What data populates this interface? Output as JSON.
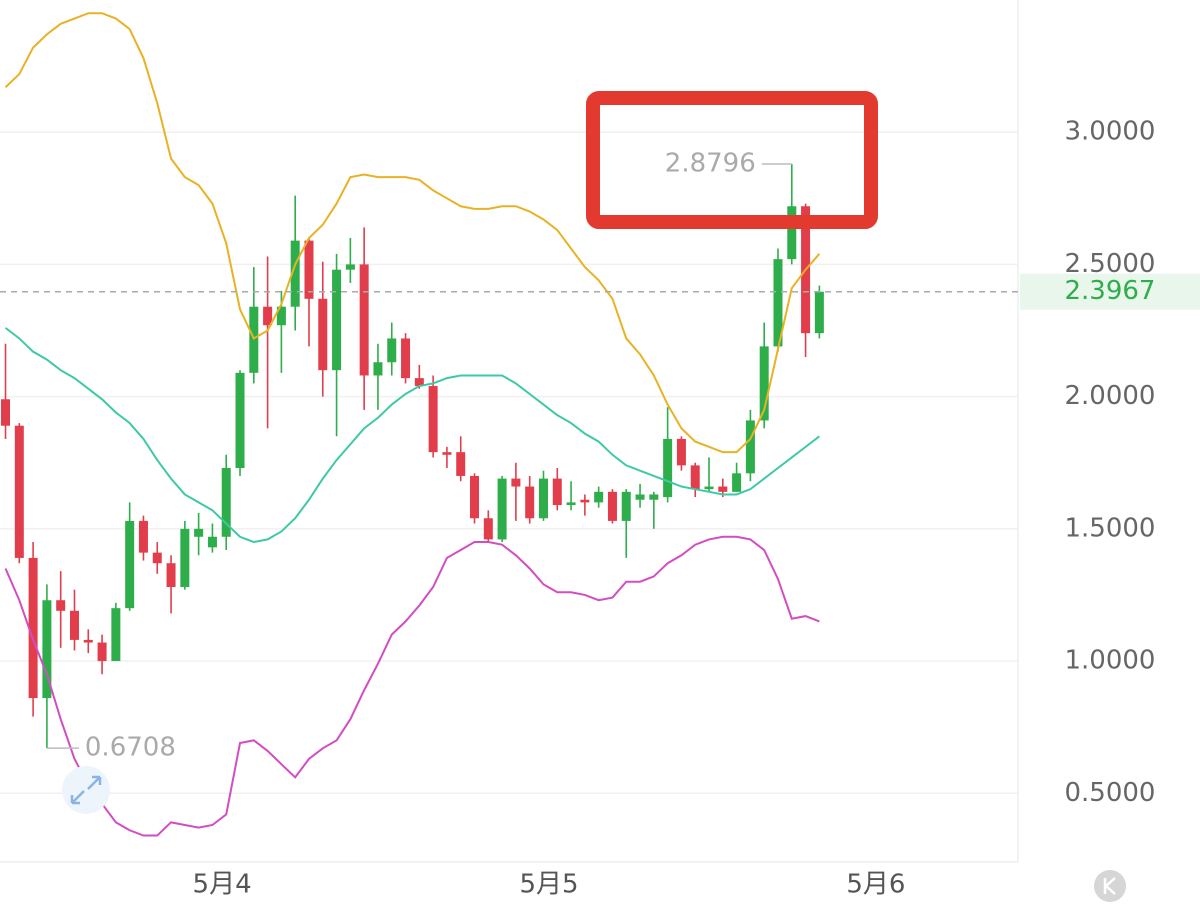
{
  "chart_data": {
    "type": "candlestick",
    "x": [
      0,
      1,
      2,
      3,
      4,
      5,
      6,
      7,
      8,
      9,
      10,
      11,
      12,
      13,
      14,
      15,
      16,
      17,
      18,
      19,
      20,
      21,
      22,
      23,
      24,
      25,
      26,
      27,
      28,
      29,
      30,
      31,
      32,
      33,
      34,
      35,
      36,
      37,
      38,
      39,
      40,
      41,
      42,
      43,
      44,
      45,
      46,
      47,
      48,
      49,
      50,
      51,
      52,
      53,
      54,
      55,
      56,
      57,
      58,
      59
    ],
    "open": [
      1.99,
      1.89,
      1.39,
      0.86,
      1.23,
      1.19,
      1.08,
      1.07,
      1.0,
      1.2,
      1.53,
      1.41,
      1.37,
      1.28,
      1.47,
      1.43,
      1.47,
      1.73,
      2.09,
      2.34,
      2.27,
      2.34,
      2.59,
      2.37,
      2.1,
      2.48,
      2.5,
      2.08,
      2.13,
      2.22,
      2.07,
      2.04,
      1.79,
      1.79,
      1.7,
      1.54,
      1.46,
      1.69,
      1.66,
      1.54,
      1.69,
      1.59,
      1.61,
      1.6,
      1.64,
      1.53,
      1.61,
      1.61,
      1.62,
      1.84,
      1.74,
      1.65,
      1.66,
      1.64,
      1.71,
      1.91,
      2.19,
      2.52,
      2.72,
      2.24
    ],
    "high": [
      2.2,
      1.9,
      1.45,
      1.29,
      1.34,
      1.27,
      1.12,
      1.1,
      1.22,
      1.6,
      1.55,
      1.45,
      1.4,
      1.53,
      1.56,
      1.52,
      1.78,
      2.1,
      2.49,
      2.53,
      2.4,
      2.76,
      2.6,
      2.51,
      2.54,
      2.6,
      2.64,
      2.2,
      2.28,
      2.24,
      2.12,
      2.08,
      1.81,
      1.85,
      1.71,
      1.57,
      1.7,
      1.75,
      1.7,
      1.72,
      1.73,
      1.68,
      1.63,
      1.66,
      1.65,
      1.65,
      1.67,
      1.64,
      1.96,
      1.85,
      1.75,
      1.77,
      1.69,
      1.75,
      1.95,
      2.28,
      2.56,
      2.8796,
      2.73,
      2.42
    ],
    "low": [
      1.84,
      1.37,
      0.79,
      0.6708,
      1.05,
      1.04,
      1.03,
      0.95,
      1.0,
      1.19,
      1.38,
      1.33,
      1.18,
      1.27,
      1.4,
      1.41,
      1.42,
      1.7,
      2.05,
      1.88,
      2.09,
      2.25,
      2.19,
      2.0,
      1.85,
      2.43,
      1.95,
      1.95,
      2.08,
      2.05,
      2.03,
      1.77,
      1.73,
      1.68,
      1.52,
      1.45,
      1.45,
      1.53,
      1.52,
      1.53,
      1.57,
      1.57,
      1.55,
      1.58,
      1.52,
      1.39,
      1.58,
      1.5,
      1.6,
      1.72,
      1.62,
      1.64,
      1.62,
      1.64,
      1.68,
      1.88,
      2.17,
      2.5,
      2.15,
      2.22
    ],
    "close": [
      1.89,
      1.39,
      0.86,
      1.23,
      1.19,
      1.08,
      1.07,
      1.0,
      1.2,
      1.53,
      1.41,
      1.37,
      1.28,
      1.5,
      1.5,
      1.47,
      1.73,
      2.09,
      2.34,
      2.27,
      2.34,
      2.59,
      2.37,
      2.1,
      2.48,
      2.5,
      2.08,
      2.13,
      2.22,
      2.07,
      2.04,
      1.79,
      1.78,
      1.7,
      1.54,
      1.46,
      1.69,
      1.66,
      1.54,
      1.69,
      1.59,
      1.6,
      1.6,
      1.64,
      1.53,
      1.64,
      1.63,
      1.63,
      1.84,
      1.74,
      1.65,
      1.66,
      1.64,
      1.71,
      1.91,
      2.19,
      2.52,
      2.72,
      2.24,
      2.3967
    ],
    "up_color": "#2ead4b",
    "down_color": "#e23d4b",
    "bands": [
      {
        "color": "#e8b224",
        "values": [
          3.17,
          3.22,
          3.32,
          3.37,
          3.41,
          3.43,
          3.45,
          3.45,
          3.43,
          3.39,
          3.28,
          3.11,
          2.9,
          2.83,
          2.8,
          2.73,
          2.58,
          2.33,
          2.22,
          2.25,
          2.35,
          2.5,
          2.6,
          2.65,
          2.73,
          2.83,
          2.84,
          2.83,
          2.83,
          2.83,
          2.82,
          2.78,
          2.75,
          2.72,
          2.71,
          2.71,
          2.72,
          2.72,
          2.7,
          2.67,
          2.63,
          2.56,
          2.49,
          2.44,
          2.37,
          2.22,
          2.16,
          2.08,
          1.97,
          1.88,
          1.83,
          1.81,
          1.79,
          1.79,
          1.84,
          1.95,
          2.18,
          2.41,
          2.48,
          2.54
        ]
      },
      {
        "color": "#3ec9a6",
        "values": [
          2.26,
          2.22,
          2.17,
          2.14,
          2.1,
          2.07,
          2.03,
          1.99,
          1.94,
          1.9,
          1.84,
          1.76,
          1.69,
          1.63,
          1.6,
          1.57,
          1.52,
          1.47,
          1.45,
          1.46,
          1.49,
          1.54,
          1.61,
          1.69,
          1.76,
          1.82,
          1.88,
          1.92,
          1.97,
          2.01,
          2.04,
          2.05,
          2.07,
          2.08,
          2.08,
          2.08,
          2.08,
          2.05,
          2.01,
          1.97,
          1.93,
          1.9,
          1.86,
          1.83,
          1.78,
          1.74,
          1.72,
          1.7,
          1.68,
          1.66,
          1.65,
          1.64,
          1.63,
          1.63,
          1.65,
          1.69,
          1.73,
          1.77,
          1.81,
          1.85
        ]
      },
      {
        "color": "#d24dc2",
        "values": [
          1.35,
          1.23,
          1.08,
          0.95,
          0.78,
          0.63,
          0.53,
          0.46,
          0.39,
          0.36,
          0.34,
          0.34,
          0.39,
          0.38,
          0.37,
          0.38,
          0.42,
          0.69,
          0.7,
          0.66,
          0.61,
          0.56,
          0.63,
          0.67,
          0.7,
          0.78,
          0.89,
          0.99,
          1.1,
          1.15,
          1.21,
          1.28,
          1.39,
          1.42,
          1.45,
          1.45,
          1.44,
          1.4,
          1.35,
          1.29,
          1.26,
          1.26,
          1.25,
          1.23,
          1.24,
          1.3,
          1.3,
          1.32,
          1.37,
          1.4,
          1.44,
          1.46,
          1.47,
          1.47,
          1.46,
          1.42,
          1.31,
          1.16,
          1.17,
          1.15
        ]
      }
    ],
    "xlim": [
      -0.4,
      73.4
    ],
    "xticks": [
      {
        "value": 15.7,
        "label": "5月4"
      },
      {
        "value": 39.4,
        "label": "5月5"
      },
      {
        "value": 63.1,
        "label": "5月6"
      }
    ],
    "ylim": [
      0.24,
      3.5
    ],
    "yticks": [
      {
        "value": 0.5,
        "label": "0.5000"
      },
      {
        "value": 1,
        "label": "1.0000"
      },
      {
        "value": 1.5,
        "label": "1.5000"
      },
      {
        "value": 2,
        "label": "2.0000"
      },
      {
        "value": 2.5,
        "label": "2.5000"
      },
      {
        "value": 3,
        "label": "3.0000"
      }
    ],
    "grid": true
  }
}
